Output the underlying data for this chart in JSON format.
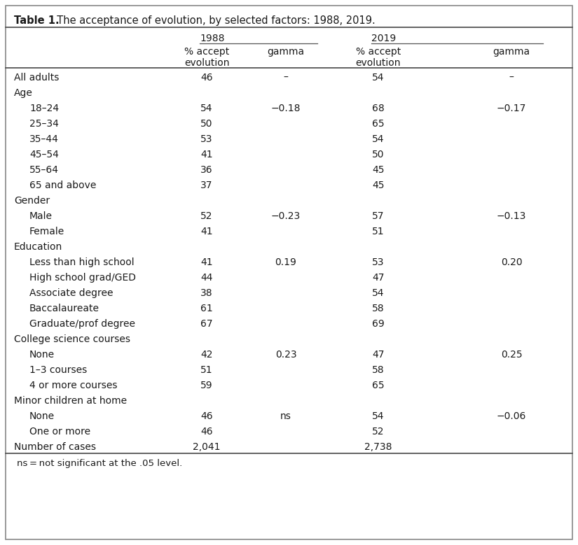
{
  "title_bold": "Table 1.",
  "title_rest": "  The acceptance of evolution, by selected factors: 1988, 2019.",
  "col_headers": {
    "year_1988": "1988",
    "year_2019": "2019",
    "sub1": "% accept\nevolution",
    "sub2": "gamma",
    "sub3": "% accept\nevolution",
    "sub4": "gamma"
  },
  "rows": [
    {
      "label": "All adults",
      "indent": 0,
      "v1988": "46",
      "g1988": "–",
      "v2019": "54",
      "g2019": "–"
    },
    {
      "label": "Age",
      "indent": 0,
      "v1988": "",
      "g1988": "",
      "v2019": "",
      "g2019": ""
    },
    {
      "label": "18–24",
      "indent": 1,
      "v1988": "54",
      "g1988": "−0.18",
      "v2019": "68",
      "g2019": "−0.17"
    },
    {
      "label": "25–34",
      "indent": 1,
      "v1988": "50",
      "g1988": "",
      "v2019": "65",
      "g2019": ""
    },
    {
      "label": "35–44",
      "indent": 1,
      "v1988": "53",
      "g1988": "",
      "v2019": "54",
      "g2019": ""
    },
    {
      "label": "45–54",
      "indent": 1,
      "v1988": "41",
      "g1988": "",
      "v2019": "50",
      "g2019": ""
    },
    {
      "label": "55–64",
      "indent": 1,
      "v1988": "36",
      "g1988": "",
      "v2019": "45",
      "g2019": ""
    },
    {
      "label": "65 and above",
      "indent": 1,
      "v1988": "37",
      "g1988": "",
      "v2019": "45",
      "g2019": ""
    },
    {
      "label": "Gender",
      "indent": 0,
      "v1988": "",
      "g1988": "",
      "v2019": "",
      "g2019": ""
    },
    {
      "label": "Male",
      "indent": 1,
      "v1988": "52",
      "g1988": "−0.23",
      "v2019": "57",
      "g2019": "−0.13"
    },
    {
      "label": "Female",
      "indent": 1,
      "v1988": "41",
      "g1988": "",
      "v2019": "51",
      "g2019": ""
    },
    {
      "label": "Education",
      "indent": 0,
      "v1988": "",
      "g1988": "",
      "v2019": "",
      "g2019": ""
    },
    {
      "label": "Less than high school",
      "indent": 1,
      "v1988": "41",
      "g1988": "0.19",
      "v2019": "53",
      "g2019": "0.20"
    },
    {
      "label": "High school grad/GED",
      "indent": 1,
      "v1988": "44",
      "g1988": "",
      "v2019": "47",
      "g2019": ""
    },
    {
      "label": "Associate degree",
      "indent": 1,
      "v1988": "38",
      "g1988": "",
      "v2019": "54",
      "g2019": ""
    },
    {
      "label": "Baccalaureate",
      "indent": 1,
      "v1988": "61",
      "g1988": "",
      "v2019": "58",
      "g2019": ""
    },
    {
      "label": "Graduate/prof degree",
      "indent": 1,
      "v1988": "67",
      "g1988": "",
      "v2019": "69",
      "g2019": ""
    },
    {
      "label": "College science courses",
      "indent": 0,
      "v1988": "",
      "g1988": "",
      "v2019": "",
      "g2019": ""
    },
    {
      "label": "None",
      "indent": 1,
      "v1988": "42",
      "g1988": "0.23",
      "v2019": "47",
      "g2019": "0.25"
    },
    {
      "label": "1–3 courses",
      "indent": 1,
      "v1988": "51",
      "g1988": "",
      "v2019": "58",
      "g2019": ""
    },
    {
      "label": "4 or more courses",
      "indent": 1,
      "v1988": "59",
      "g1988": "",
      "v2019": "65",
      "g2019": ""
    },
    {
      "label": "Minor children at home",
      "indent": 0,
      "v1988": "",
      "g1988": "",
      "v2019": "",
      "g2019": ""
    },
    {
      "label": "None",
      "indent": 1,
      "v1988": "46",
      "g1988": "ns",
      "v2019": "54",
      "g2019": "−0.06"
    },
    {
      "label": "One or more",
      "indent": 1,
      "v1988": "46",
      "g1988": "",
      "v2019": "52",
      "g2019": ""
    },
    {
      "label": "Number of cases",
      "indent": 0,
      "v1988": "2,041",
      "g1988": "",
      "v2019": "2,738",
      "g2019": ""
    }
  ],
  "footnote": "ns = not significant at the .05 level.",
  "bg_color": "#ffffff",
  "text_color": "#1a1a1a",
  "line_color": "#555555",
  "border_color": "#888888"
}
